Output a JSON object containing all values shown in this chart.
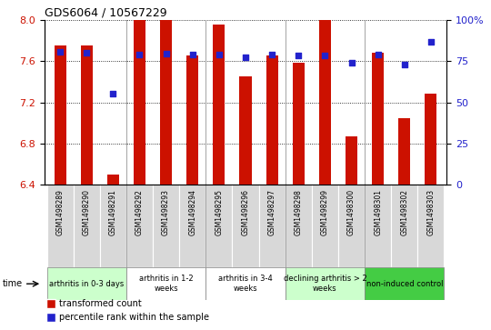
{
  "title": "GDS6064 / 10567229",
  "samples": [
    "GSM1498289",
    "GSM1498290",
    "GSM1498291",
    "GSM1498292",
    "GSM1498293",
    "GSM1498294",
    "GSM1498295",
    "GSM1498296",
    "GSM1498297",
    "GSM1498298",
    "GSM1498299",
    "GSM1498300",
    "GSM1498301",
    "GSM1498302",
    "GSM1498303"
  ],
  "bar_values": [
    7.75,
    7.75,
    6.5,
    8.0,
    8.0,
    7.65,
    7.95,
    7.45,
    7.65,
    7.58,
    8.0,
    6.87,
    7.68,
    7.05,
    7.28
  ],
  "dot_values": [
    7.69,
    7.68,
    7.28,
    7.66,
    7.67,
    7.66,
    7.66,
    7.64,
    7.66,
    7.65,
    7.65,
    7.58,
    7.66,
    7.57,
    7.79
  ],
  "ymin": 6.4,
  "ymax": 8.0,
  "yticks": [
    6.4,
    6.8,
    7.2,
    7.6,
    8.0
  ],
  "right_yticks": [
    0,
    25,
    50,
    75,
    100
  ],
  "bar_color": "#cc1100",
  "dot_color": "#2222cc",
  "groups": [
    {
      "label": "arthritis in 0-3 days",
      "start": 0,
      "end": 3,
      "facecolor": "#ccffcc"
    },
    {
      "label": "arthritis in 1-2\nweeks",
      "start": 3,
      "end": 6,
      "facecolor": "#ffffff"
    },
    {
      "label": "arthritis in 3-4\nweeks",
      "start": 6,
      "end": 9,
      "facecolor": "#ffffff"
    },
    {
      "label": "declining arthritis > 2\nweeks",
      "start": 9,
      "end": 12,
      "facecolor": "#ccffcc"
    },
    {
      "label": "non-induced control",
      "start": 12,
      "end": 15,
      "facecolor": "#44cc44"
    }
  ],
  "sample_box_color": "#d8d8d8",
  "time_label": "time",
  "legend_bar_label": "transformed count",
  "legend_dot_label": "percentile rank within the sample",
  "right_yaxis_color": "#2222cc",
  "left_yaxis_color": "#cc1100",
  "title_fontsize": 9,
  "bar_width": 0.45
}
